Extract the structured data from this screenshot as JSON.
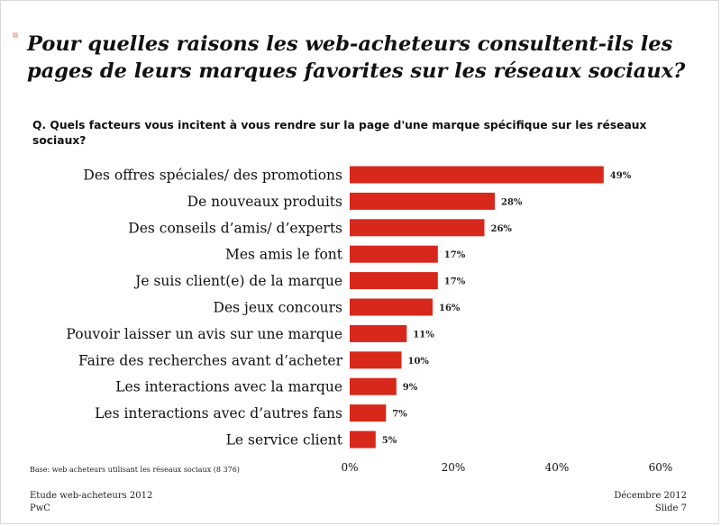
{
  "slide": {
    "title": "Pour quelles raisons les web-acheteurs consultent-ils les pages de leurs marques favorites sur les réseaux sociaux?",
    "question": "Q. Quels facteurs vous incitent à vous rendre sur la page d'une marque spécifique sur les réseaux sociaux?",
    "base_note": "Base: web acheteurs utilisant les réseaux sociaux (8 376)",
    "footer_left_line1": "Etude web-acheteurs 2012",
    "footer_left_line2": "PwC",
    "footer_right_line1": "Décembre 2012",
    "footer_right_line2": "Slide 7"
  },
  "colors": {
    "bar": "#d7281b",
    "text": "#111111"
  },
  "chart_data": {
    "type": "bar",
    "orientation": "horizontal",
    "categories": [
      "Des offres spéciales/ des promotions",
      "De nouveaux produits",
      "Des conseils d’amis/ d’experts",
      "Mes amis le font",
      "Je suis client(e) de la marque",
      "Des jeux concours",
      "Pouvoir laisser un avis sur une marque",
      "Faire des recherches avant d’acheter",
      "Les interactions avec la marque",
      "Les interactions avec d’autres fans",
      "Le service client"
    ],
    "values": [
      49,
      28,
      26,
      17,
      17,
      16,
      11,
      10,
      9,
      7,
      5
    ],
    "value_labels": [
      "49%",
      "28%",
      "26%",
      "17%",
      "17%",
      "16%",
      "11%",
      "10%",
      "9%",
      "7%",
      "5%"
    ],
    "xlim": [
      0,
      60
    ],
    "xticks": [
      0,
      20,
      40,
      60
    ],
    "xtick_labels": [
      "0%",
      "20%",
      "40%",
      "60%"
    ],
    "grid": false,
    "legend": "none"
  }
}
